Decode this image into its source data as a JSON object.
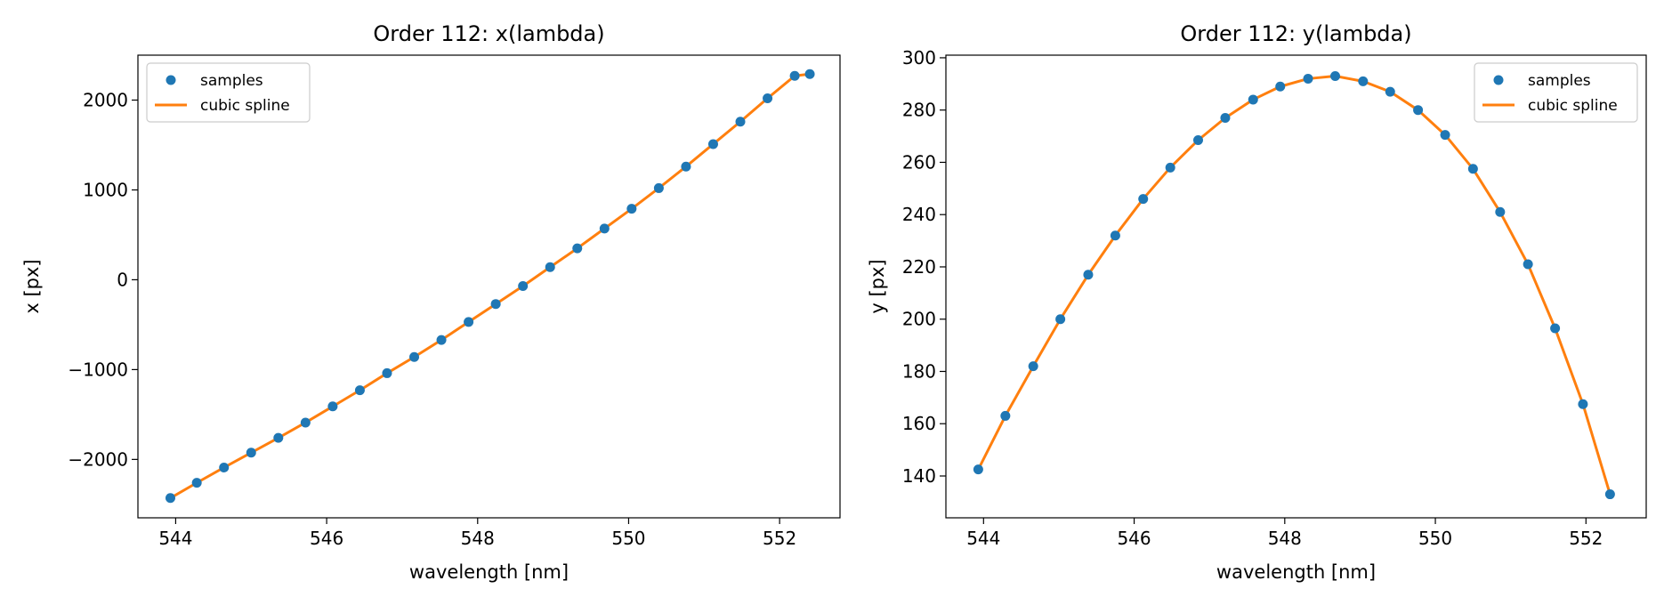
{
  "chart_data": [
    {
      "type": "line",
      "title": "Order 112: x(lambda)",
      "xlabel": "wavelength [nm]",
      "ylabel": "x [px]",
      "xlim": [
        543.5,
        552.8
      ],
      "ylim": [
        -2650,
        2500
      ],
      "xticks": [
        544,
        546,
        548,
        550,
        552
      ],
      "yticks": [
        -2000,
        -1000,
        0,
        1000,
        2000
      ],
      "ytick_labels": [
        "−2000",
        "−1000",
        "0",
        "1000",
        "2000"
      ],
      "legend": [
        "samples",
        "cubic spline"
      ],
      "legend_loc": "upper left",
      "grid": false,
      "series": [
        {
          "name": "samples",
          "kind": "scatter",
          "x": [
            543.93,
            544.28,
            544.64,
            545.0,
            545.36,
            545.72,
            546.08,
            546.44,
            546.8,
            547.16,
            547.52,
            547.88,
            548.24,
            548.6,
            548.96,
            549.32,
            549.68,
            550.04,
            550.4,
            550.76,
            551.12,
            551.48,
            551.84,
            552.2,
            552.4
          ],
          "y": [
            -2430,
            -2260,
            -2090,
            -1925,
            -1760,
            -1590,
            -1410,
            -1230,
            -1040,
            -860,
            -670,
            -470,
            -270,
            -70,
            140,
            350,
            570,
            790,
            1020,
            1260,
            1510,
            1760,
            2020,
            2270,
            2290
          ]
        },
        {
          "name": "cubic spline",
          "kind": "line",
          "x": [
            543.93,
            544.28,
            544.64,
            545.0,
            545.36,
            545.72,
            546.08,
            546.44,
            546.8,
            547.16,
            547.52,
            547.88,
            548.24,
            548.6,
            548.96,
            549.32,
            549.68,
            550.04,
            550.4,
            550.76,
            551.12,
            551.48,
            551.84,
            552.2,
            552.4
          ],
          "y": [
            -2430,
            -2260,
            -2090,
            -1925,
            -1760,
            -1590,
            -1410,
            -1230,
            -1040,
            -860,
            -670,
            -470,
            -270,
            -70,
            140,
            350,
            570,
            790,
            1020,
            1260,
            1510,
            1760,
            2020,
            2270,
            2290
          ]
        }
      ]
    },
    {
      "type": "line",
      "title": "Order 112: y(lambda)",
      "xlabel": "wavelength [nm]",
      "ylabel": "y [px]",
      "xlim": [
        543.5,
        552.8
      ],
      "ylim": [
        124,
        301
      ],
      "xticks": [
        544,
        546,
        548,
        550,
        552
      ],
      "yticks": [
        140,
        160,
        180,
        200,
        220,
        240,
        260,
        280,
        300
      ],
      "ytick_labels": [
        "140",
        "160",
        "180",
        "200",
        "220",
        "240",
        "260",
        "280",
        "300"
      ],
      "legend": [
        "samples",
        "cubic spline"
      ],
      "legend_loc": "upper right",
      "grid": false,
      "series": [
        {
          "name": "samples",
          "kind": "scatter",
          "x": [
            543.93,
            544.29,
            544.66,
            545.02,
            545.39,
            545.75,
            546.12,
            546.48,
            546.85,
            547.21,
            547.58,
            547.94,
            548.31,
            548.67,
            549.04,
            549.4,
            549.77,
            550.13,
            550.5,
            550.86,
            551.23,
            551.59,
            551.96,
            552.32
          ],
          "y": [
            142.5,
            163,
            182,
            200,
            217,
            232,
            246,
            258,
            268.5,
            277,
            284,
            289,
            292,
            293,
            291,
            287,
            280,
            270.5,
            257.5,
            241,
            221,
            196.5,
            167.5,
            133
          ]
        },
        {
          "name": "cubic spline",
          "kind": "line",
          "x": [
            543.93,
            544.29,
            544.66,
            545.02,
            545.39,
            545.75,
            546.12,
            546.48,
            546.85,
            547.21,
            547.58,
            547.94,
            548.31,
            548.67,
            549.04,
            549.4,
            549.77,
            550.13,
            550.5,
            550.86,
            551.23,
            551.59,
            551.96,
            552.32
          ],
          "y": [
            142.5,
            163,
            182,
            200,
            217,
            232,
            246,
            258,
            268.5,
            277,
            284,
            289,
            292,
            293,
            291,
            287,
            280,
            270.5,
            257.5,
            241,
            221,
            196.5,
            167.5,
            133
          ]
        }
      ]
    }
  ]
}
